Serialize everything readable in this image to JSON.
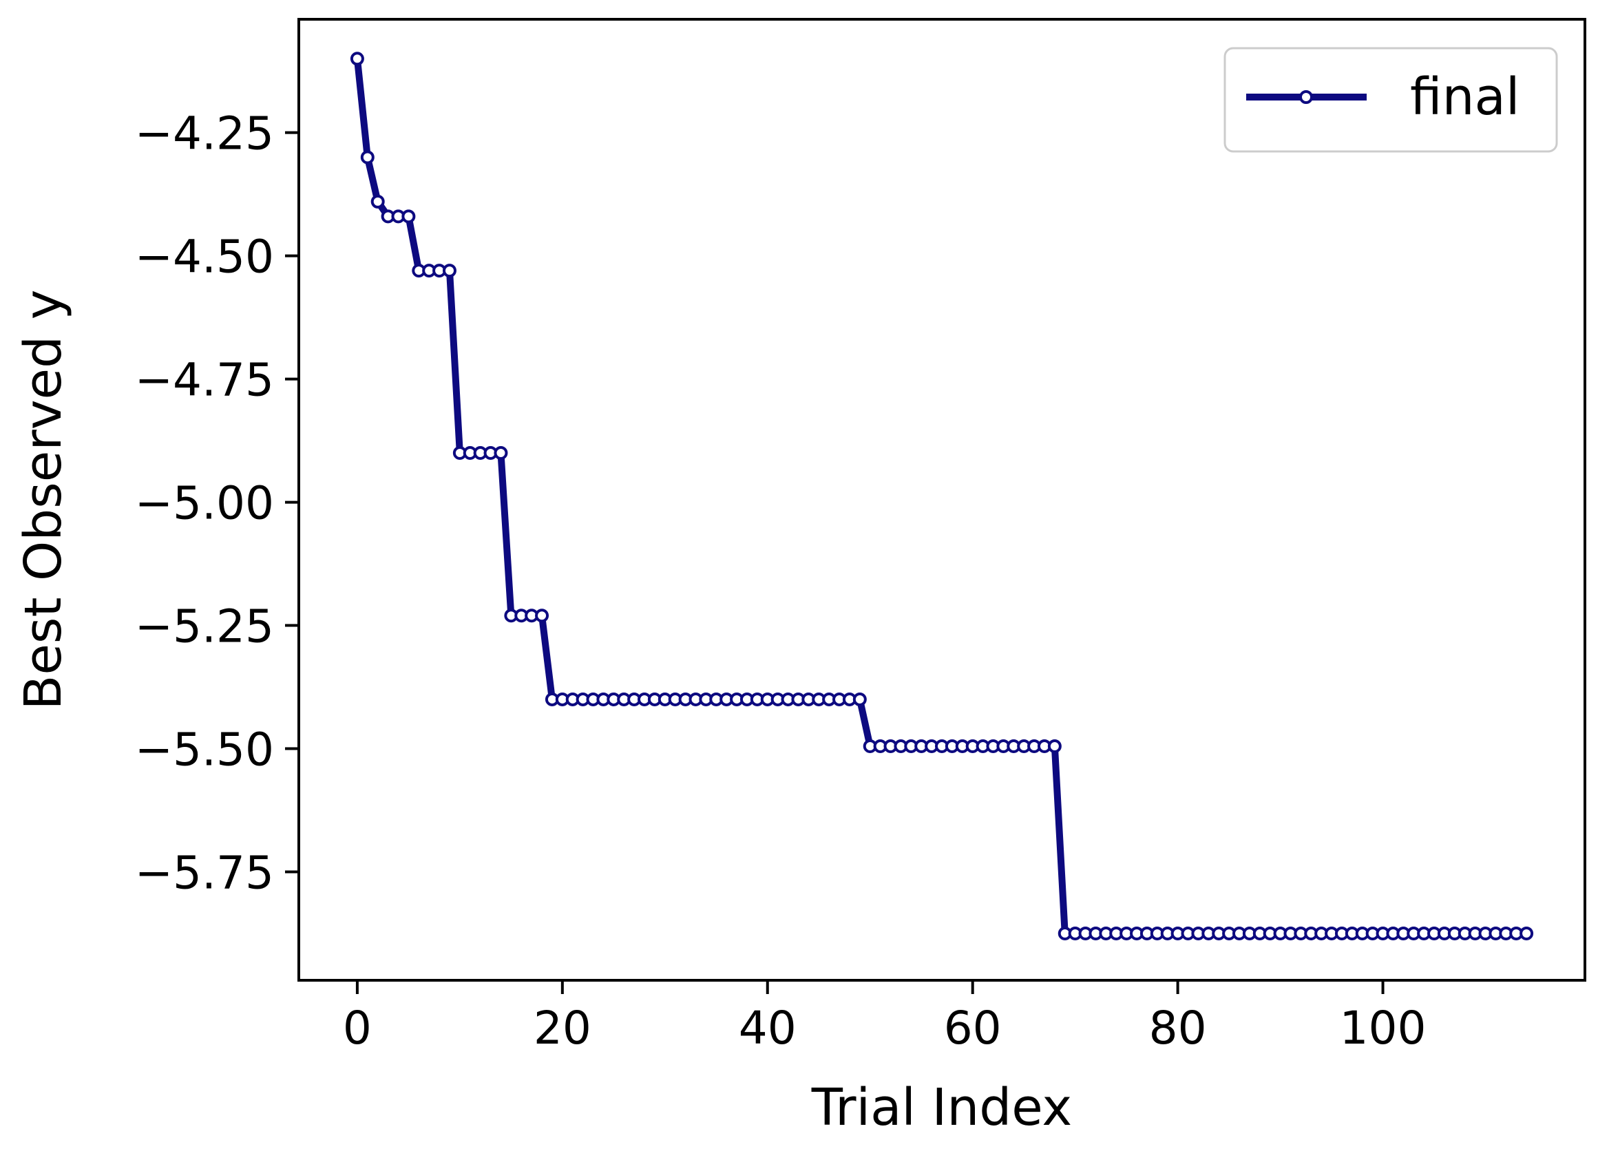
{
  "chart_data": {
    "type": "line",
    "title": "",
    "xlabel": "Trial Index",
    "ylabel": "Best Observed y",
    "xlim": [
      -5.7,
      119.7
    ],
    "ylim": [
      -5.97,
      -4.02
    ],
    "xticks": [
      0,
      20,
      40,
      60,
      80,
      100
    ],
    "xtick_labels": [
      "0",
      "20",
      "40",
      "60",
      "80",
      "100"
    ],
    "yticks": [
      -4.25,
      -4.5,
      -4.75,
      -5.0,
      -5.25,
      -5.5,
      -5.75
    ],
    "ytick_labels": [
      "−4.25",
      "−4.50",
      "−4.75",
      "−5.00",
      "−5.25",
      "−5.50",
      "−5.75"
    ],
    "grid": false,
    "legend_position": "top-right",
    "series": [
      {
        "name": "final",
        "color": "#0d0a80",
        "marker": "open-circle",
        "segments": [
          {
            "from": 0,
            "to": 0,
            "y": -4.1
          },
          {
            "from": 1,
            "to": 1,
            "y": -4.3
          },
          {
            "from": 2,
            "to": 2,
            "y": -4.39
          },
          {
            "from": 3,
            "to": 5,
            "y": -4.42
          },
          {
            "from": 6,
            "to": 9,
            "y": -4.53
          },
          {
            "from": 10,
            "to": 14,
            "y": -4.9
          },
          {
            "from": 15,
            "to": 18,
            "y": -5.23
          },
          {
            "from": 19,
            "to": 49,
            "y": -5.4
          },
          {
            "from": 50,
            "to": 68,
            "y": -5.495
          },
          {
            "from": 69,
            "to": 114,
            "y": -5.875
          }
        ]
      }
    ]
  }
}
